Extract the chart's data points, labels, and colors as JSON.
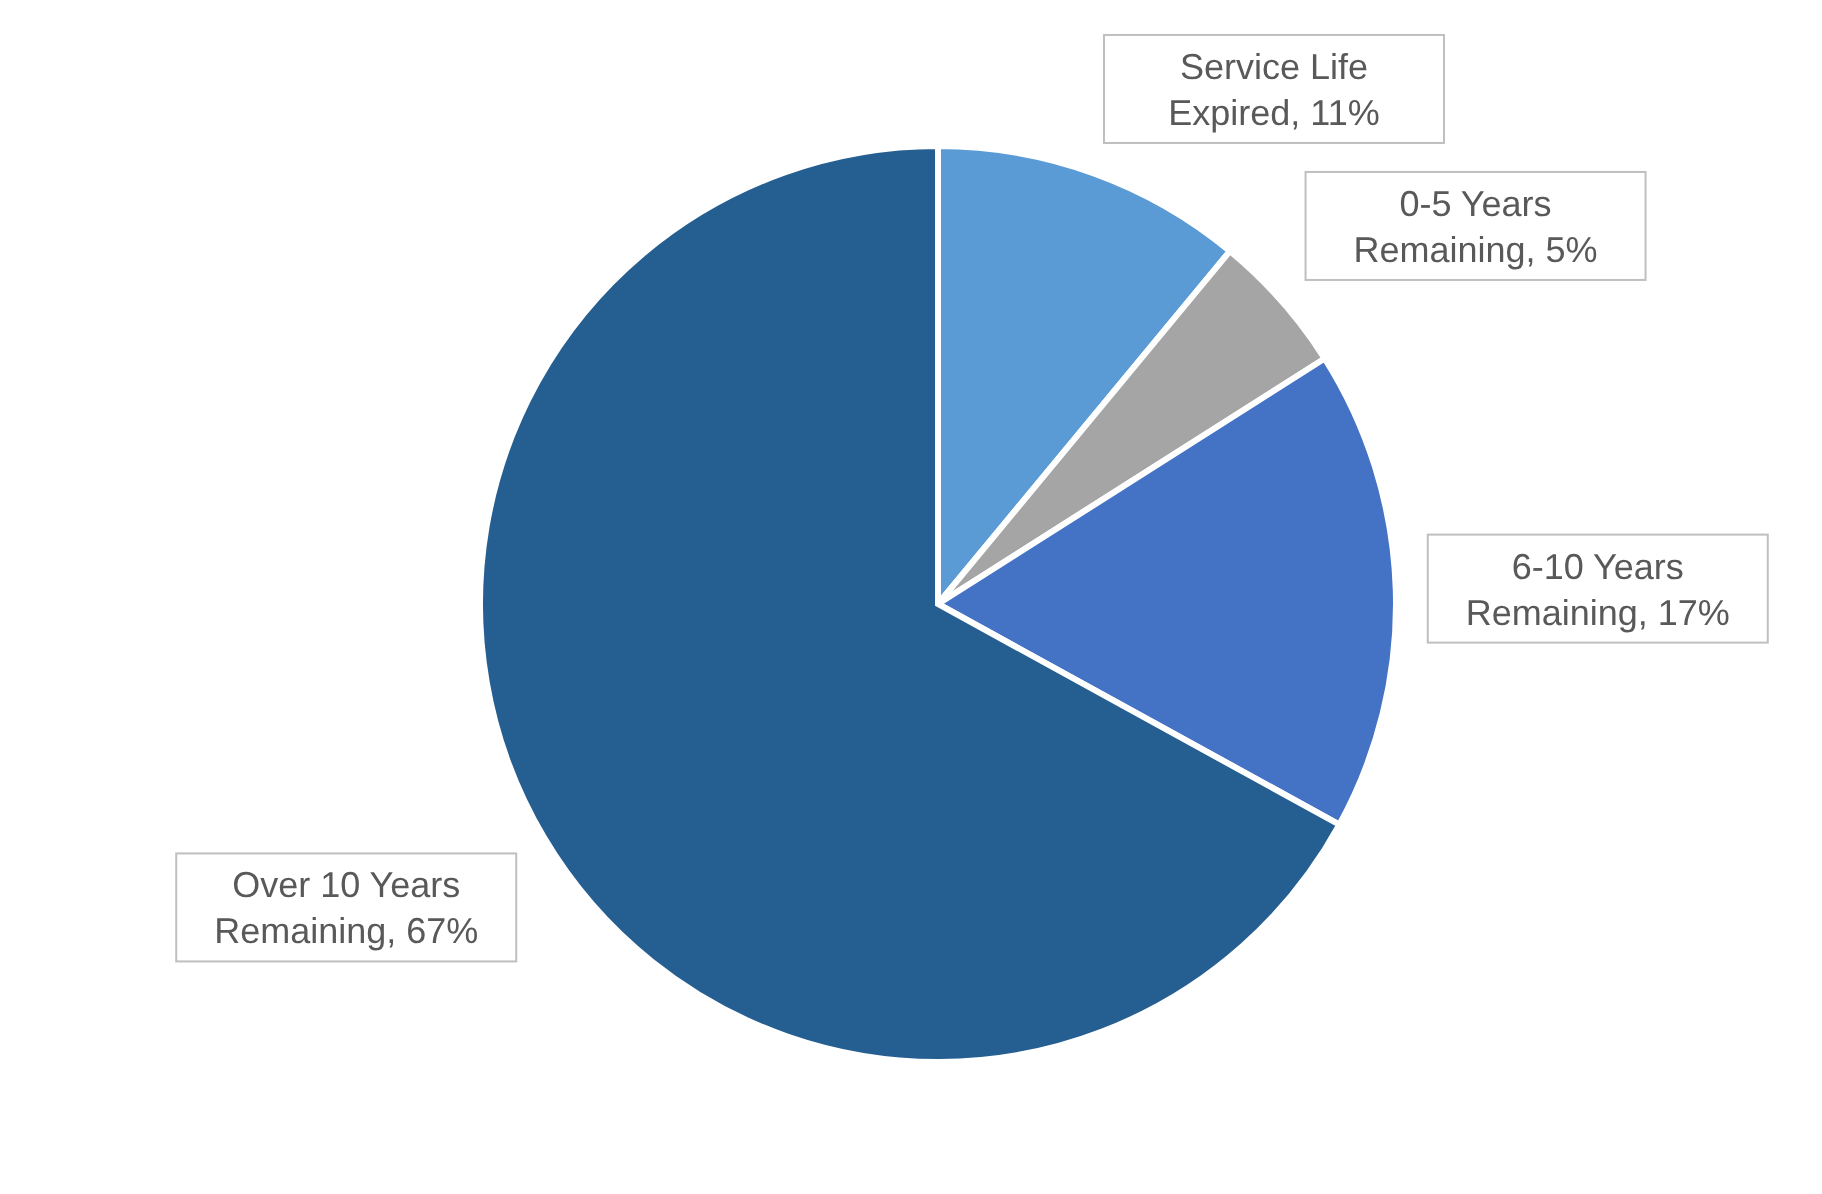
{
  "chart_data": {
    "type": "pie",
    "categories": [
      "Service Life Expired",
      "0-5 Years Remaining",
      "6-10 Years Remaining",
      "Over 10 Years Remaining"
    ],
    "values": [
      11,
      5,
      17,
      67
    ],
    "value_labels": [
      "11%",
      "5%",
      "17%",
      "67%"
    ],
    "colors": [
      "#5b9bd5",
      "#a5a5a5",
      "#4472c4",
      "#255e91"
    ],
    "legend": false
  }
}
